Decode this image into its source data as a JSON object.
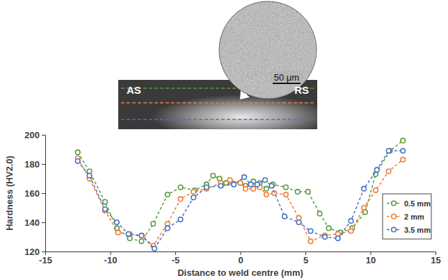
{
  "chart_data": {
    "type": "line",
    "x_label": "Distance to weld centre (mm)",
    "y_label": "Hardness (HV2.0)",
    "xlim": [
      -15,
      15
    ],
    "xticks": [
      -15,
      -10,
      -5,
      0,
      5,
      10,
      15
    ],
    "ylim": [
      120,
      200
    ],
    "yticks": [
      120,
      140,
      160,
      180,
      200
    ],
    "grid": false,
    "legend": "lower right",
    "marker": "circle",
    "line_style": "dashed",
    "annotations": [
      {
        "text": "AS"
      },
      {
        "text": "RS"
      },
      {
        "text": "50 μm"
      }
    ],
    "series": [
      {
        "name": "0.5 mm",
        "color": "#5b9b3c",
        "x": [
          -12.5,
          -11.6,
          -10.4,
          -9.5,
          -8.5,
          -7.6,
          -6.7,
          -5.6,
          -4.6,
          -3.5,
          -2.6,
          -2.1,
          -1.6,
          -1.1,
          -0.5,
          0,
          0.4,
          1.0,
          1.5,
          2.0,
          2.5,
          3.5,
          4.4,
          5.2,
          6.1,
          6.8,
          7.7,
          8.6,
          9.6,
          10.4,
          11.5,
          12.5
        ],
        "values": [
          188,
          175,
          154,
          136,
          129,
          127,
          139,
          159,
          164,
          162,
          166,
          172,
          170,
          167,
          166,
          167,
          165,
          168,
          167,
          163,
          166,
          164,
          161,
          161,
          146,
          136,
          133,
          136,
          147,
          173,
          189,
          196
        ]
      },
      {
        "name": "2 mm",
        "color": "#ed7d31",
        "x": [
          -12.5,
          -11.6,
          -10.4,
          -9.4,
          -8.5,
          -7.5,
          -6.7,
          -5.6,
          -4.6,
          -3.6,
          -2.6,
          -1.5,
          -0.8,
          0,
          0.4,
          1.0,
          1.5,
          2.0,
          2.6,
          3.5,
          4.5,
          5.4,
          6.5,
          7.5,
          8.5,
          9.5,
          10.4,
          11.4,
          12.5
        ],
        "values": [
          184,
          170,
          148,
          133,
          132,
          130,
          124,
          139,
          156,
          161,
          163,
          167,
          169,
          167,
          163,
          163,
          164,
          159,
          160,
          159,
          143,
          127,
          131,
          132,
          134,
          150,
          162,
          175,
          183
        ]
      },
      {
        "name": "3.5 mm",
        "color": "#4472c4",
        "x": [
          -12.5,
          -11.6,
          -10.4,
          -9.5,
          -8.6,
          -7.6,
          -6.6,
          -5.6,
          -4.6,
          -3.6,
          -2.6,
          -1.5,
          -0.5,
          0.3,
          0.8,
          1.3,
          1.9,
          2.4,
          3.4,
          4.5,
          5.4,
          6.5,
          7.5,
          8.5,
          9.5,
          10.5,
          11.4,
          12.5
        ],
        "values": [
          182,
          172,
          149,
          140,
          132,
          131,
          122,
          136,
          142,
          157,
          164,
          165,
          166,
          171,
          166,
          166,
          169,
          165,
          144,
          140,
          134,
          130,
          129,
          141,
          163,
          176,
          189,
          189
        ]
      }
    ]
  }
}
